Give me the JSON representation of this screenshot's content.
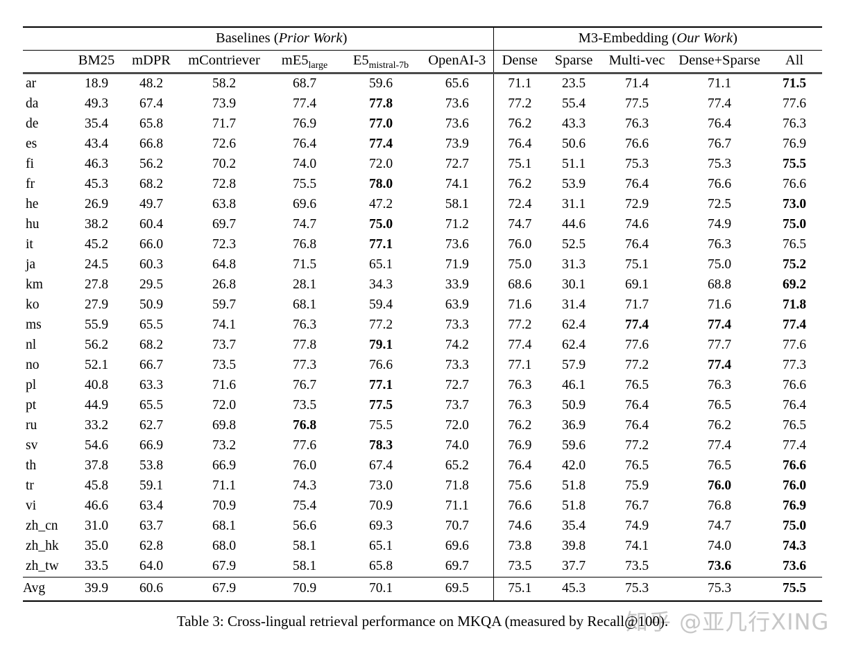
{
  "page": {
    "caption": "Table 3: Cross-lingual retrieval performance on MKQA (measured by Recall@100).",
    "watermark": "知乎 @亚几行XING"
  },
  "table": {
    "groups": [
      {
        "pre": "Baselines (",
        "italic": "Prior Work",
        "post": ")"
      },
      {
        "pre": "M3-Embedding (",
        "italic": "Our Work",
        "post": ")"
      }
    ],
    "columns": [
      {
        "text": "BM25"
      },
      {
        "text": "mDPR"
      },
      {
        "text": "mContriever"
      },
      {
        "text": "mE5",
        "sub": "large"
      },
      {
        "text": "E5",
        "sub": "mistral-7b"
      },
      {
        "text": "OpenAI-3"
      },
      {
        "text": "Dense"
      },
      {
        "text": "Sparse"
      },
      {
        "text": "Multi-vec"
      },
      {
        "text": "Dense+Sparse"
      },
      {
        "text": "All"
      }
    ],
    "rows": [
      {
        "label": "ar",
        "values": [
          "18.9",
          "48.2",
          "58.2",
          "68.7",
          "59.6",
          "65.6",
          "71.1",
          "23.5",
          "71.4",
          "71.1",
          "71.5"
        ],
        "bold": [
          10
        ]
      },
      {
        "label": "da",
        "values": [
          "49.3",
          "67.4",
          "73.9",
          "77.4",
          "77.8",
          "73.6",
          "77.2",
          "55.4",
          "77.5",
          "77.4",
          "77.6"
        ],
        "bold": [
          4
        ]
      },
      {
        "label": "de",
        "values": [
          "35.4",
          "65.8",
          "71.7",
          "76.9",
          "77.0",
          "73.6",
          "76.2",
          "43.3",
          "76.3",
          "76.4",
          "76.3"
        ],
        "bold": [
          4
        ]
      },
      {
        "label": "es",
        "values": [
          "43.4",
          "66.8",
          "72.6",
          "76.4",
          "77.4",
          "73.9",
          "76.4",
          "50.6",
          "76.6",
          "76.7",
          "76.9"
        ],
        "bold": [
          4
        ]
      },
      {
        "label": "fi",
        "values": [
          "46.3",
          "56.2",
          "70.2",
          "74.0",
          "72.0",
          "72.7",
          "75.1",
          "51.1",
          "75.3",
          "75.3",
          "75.5"
        ],
        "bold": [
          10
        ]
      },
      {
        "label": "fr",
        "values": [
          "45.3",
          "68.2",
          "72.8",
          "75.5",
          "78.0",
          "74.1",
          "76.2",
          "53.9",
          "76.4",
          "76.6",
          "76.6"
        ],
        "bold": [
          4
        ]
      },
      {
        "label": "he",
        "values": [
          "26.9",
          "49.7",
          "63.8",
          "69.6",
          "47.2",
          "58.1",
          "72.4",
          "31.1",
          "72.9",
          "72.5",
          "73.0"
        ],
        "bold": [
          10
        ]
      },
      {
        "label": "hu",
        "values": [
          "38.2",
          "60.4",
          "69.7",
          "74.7",
          "75.0",
          "71.2",
          "74.7",
          "44.6",
          "74.6",
          "74.9",
          "75.0"
        ],
        "bold": [
          4,
          10
        ]
      },
      {
        "label": "it",
        "values": [
          "45.2",
          "66.0",
          "72.3",
          "76.8",
          "77.1",
          "73.6",
          "76.0",
          "52.5",
          "76.4",
          "76.3",
          "76.5"
        ],
        "bold": [
          4
        ]
      },
      {
        "label": "ja",
        "values": [
          "24.5",
          "60.3",
          "64.8",
          "71.5",
          "65.1",
          "71.9",
          "75.0",
          "31.3",
          "75.1",
          "75.0",
          "75.2"
        ],
        "bold": [
          10
        ]
      },
      {
        "label": "km",
        "values": [
          "27.8",
          "29.5",
          "26.8",
          "28.1",
          "34.3",
          "33.9",
          "68.6",
          "30.1",
          "69.1",
          "68.8",
          "69.2"
        ],
        "bold": [
          10
        ]
      },
      {
        "label": "ko",
        "values": [
          "27.9",
          "50.9",
          "59.7",
          "68.1",
          "59.4",
          "63.9",
          "71.6",
          "31.4",
          "71.7",
          "71.6",
          "71.8"
        ],
        "bold": [
          10
        ]
      },
      {
        "label": "ms",
        "values": [
          "55.9",
          "65.5",
          "74.1",
          "76.3",
          "77.2",
          "73.3",
          "77.2",
          "62.4",
          "77.4",
          "77.4",
          "77.4"
        ],
        "bold": [
          8,
          9,
          10
        ]
      },
      {
        "label": "nl",
        "values": [
          "56.2",
          "68.2",
          "73.7",
          "77.8",
          "79.1",
          "74.2",
          "77.4",
          "62.4",
          "77.6",
          "77.7",
          "77.6"
        ],
        "bold": [
          4
        ]
      },
      {
        "label": "no",
        "values": [
          "52.1",
          "66.7",
          "73.5",
          "77.3",
          "76.6",
          "73.3",
          "77.1",
          "57.9",
          "77.2",
          "77.4",
          "77.3"
        ],
        "bold": [
          9
        ]
      },
      {
        "label": "pl",
        "values": [
          "40.8",
          "63.3",
          "71.6",
          "76.7",
          "77.1",
          "72.7",
          "76.3",
          "46.1",
          "76.5",
          "76.3",
          "76.6"
        ],
        "bold": [
          4
        ]
      },
      {
        "label": "pt",
        "values": [
          "44.9",
          "65.5",
          "72.0",
          "73.5",
          "77.5",
          "73.7",
          "76.3",
          "50.9",
          "76.4",
          "76.5",
          "76.4"
        ],
        "bold": [
          4
        ]
      },
      {
        "label": "ru",
        "values": [
          "33.2",
          "62.7",
          "69.8",
          "76.8",
          "75.5",
          "72.0",
          "76.2",
          "36.9",
          "76.4",
          "76.2",
          "76.5"
        ],
        "bold": [
          3
        ]
      },
      {
        "label": "sv",
        "values": [
          "54.6",
          "66.9",
          "73.2",
          "77.6",
          "78.3",
          "74.0",
          "76.9",
          "59.6",
          "77.2",
          "77.4",
          "77.4"
        ],
        "bold": [
          4
        ]
      },
      {
        "label": "th",
        "values": [
          "37.8",
          "53.8",
          "66.9",
          "76.0",
          "67.4",
          "65.2",
          "76.4",
          "42.0",
          "76.5",
          "76.5",
          "76.6"
        ],
        "bold": [
          10
        ]
      },
      {
        "label": "tr",
        "values": [
          "45.8",
          "59.1",
          "71.1",
          "74.3",
          "73.0",
          "71.8",
          "75.6",
          "51.8",
          "75.9",
          "76.0",
          "76.0"
        ],
        "bold": [
          9,
          10
        ]
      },
      {
        "label": "vi",
        "values": [
          "46.6",
          "63.4",
          "70.9",
          "75.4",
          "70.9",
          "71.1",
          "76.6",
          "51.8",
          "76.7",
          "76.8",
          "76.9"
        ],
        "bold": [
          10
        ]
      },
      {
        "label": "zh_cn",
        "values": [
          "31.0",
          "63.7",
          "68.1",
          "56.6",
          "69.3",
          "70.7",
          "74.6",
          "35.4",
          "74.9",
          "74.7",
          "75.0"
        ],
        "bold": [
          10
        ]
      },
      {
        "label": "zh_hk",
        "values": [
          "35.0",
          "62.8",
          "68.0",
          "58.1",
          "65.1",
          "69.6",
          "73.8",
          "39.8",
          "74.1",
          "74.0",
          "74.3"
        ],
        "bold": [
          10
        ]
      },
      {
        "label": "zh_tw",
        "values": [
          "33.5",
          "64.0",
          "67.9",
          "58.1",
          "65.8",
          "69.7",
          "73.5",
          "37.7",
          "73.5",
          "73.6",
          "73.6"
        ],
        "bold": [
          9,
          10
        ]
      },
      {
        "label": "Avg",
        "values": [
          "39.9",
          "60.6",
          "67.9",
          "70.9",
          "70.1",
          "69.5",
          "75.1",
          "45.3",
          "75.3",
          "75.3",
          "75.5"
        ],
        "bold": [
          10
        ]
      }
    ]
  }
}
